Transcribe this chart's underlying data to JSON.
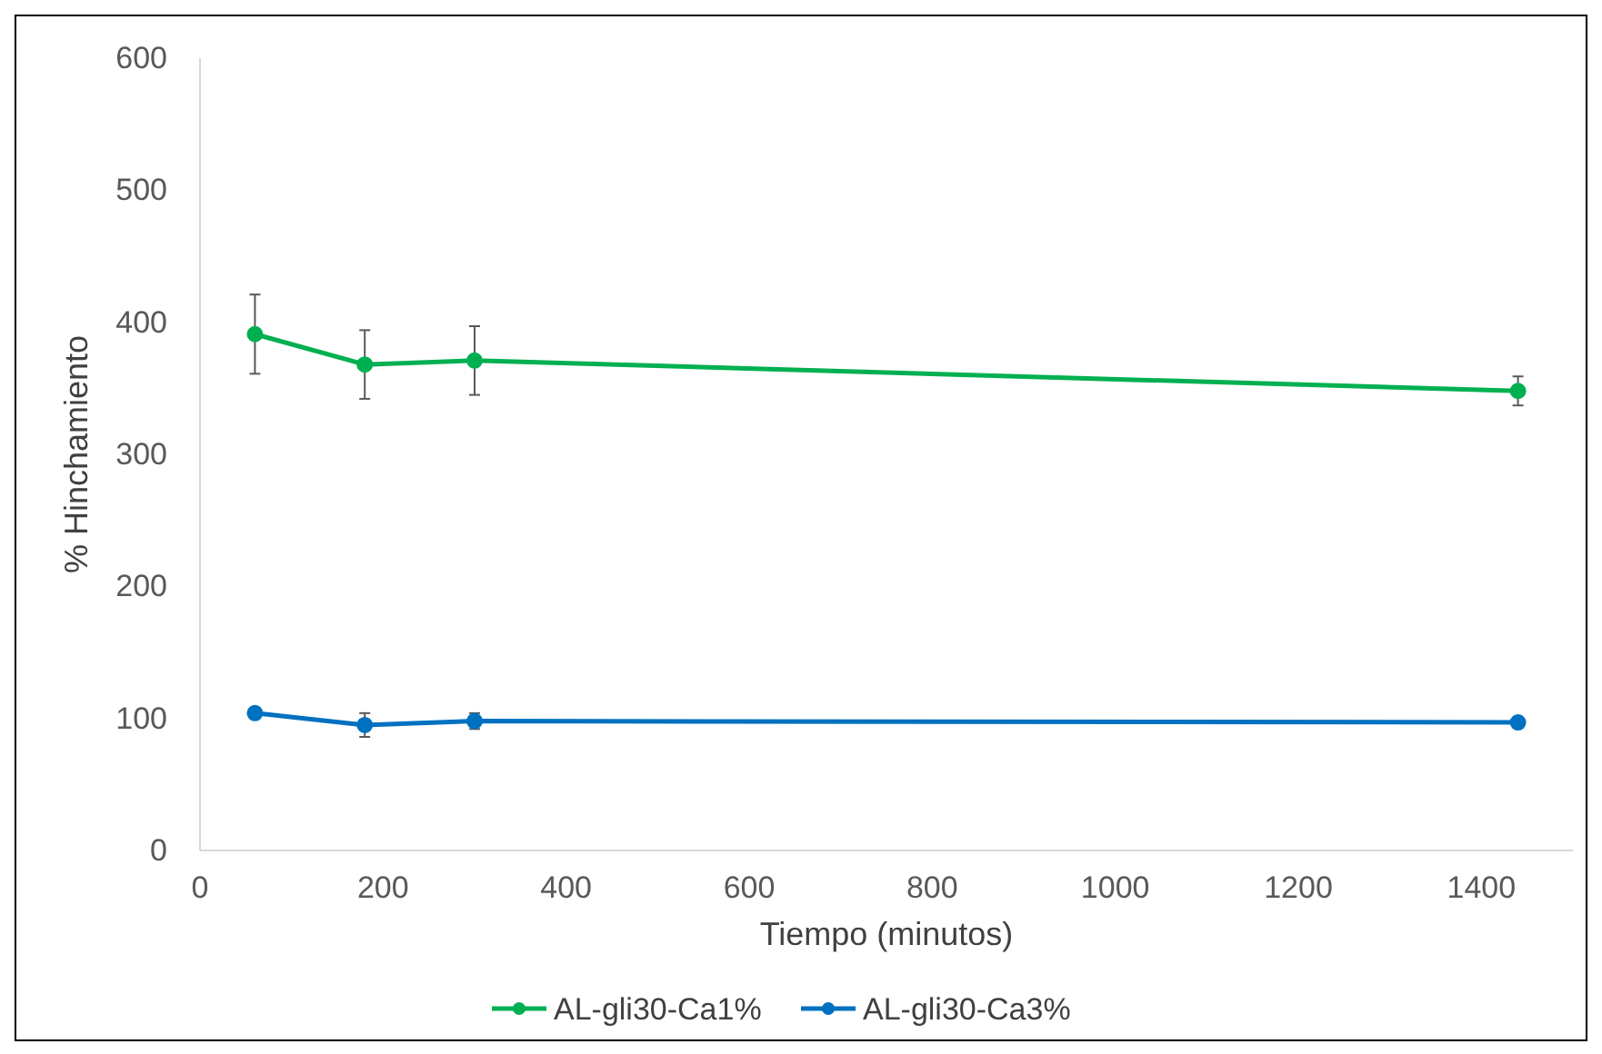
{
  "chart_data": {
    "type": "line",
    "xlabel": "Tiempo (minutos)",
    "ylabel": "% Hinchamiento",
    "x": [
      60,
      180,
      300,
      1440
    ],
    "xlim": [
      0,
      1500
    ],
    "xticks": [
      0,
      200,
      400,
      600,
      800,
      1000,
      1200,
      1400
    ],
    "ylim": [
      0,
      600
    ],
    "yticks": [
      0,
      100,
      200,
      300,
      400,
      500,
      600
    ],
    "grid": false,
    "legend": "bottom",
    "marker": "circle",
    "line_style": "solid",
    "series": [
      {
        "name": "AL-gli30-Ca1%",
        "color": "#00b050",
        "values": [
          391,
          368,
          371,
          348
        ],
        "errors": [
          30,
          26,
          26,
          11
        ]
      },
      {
        "name": "AL-gli30-Ca3%",
        "color": "#0070c0",
        "values": [
          104,
          95,
          98,
          97
        ],
        "errors": [
          null,
          9,
          6,
          null
        ]
      }
    ]
  }
}
